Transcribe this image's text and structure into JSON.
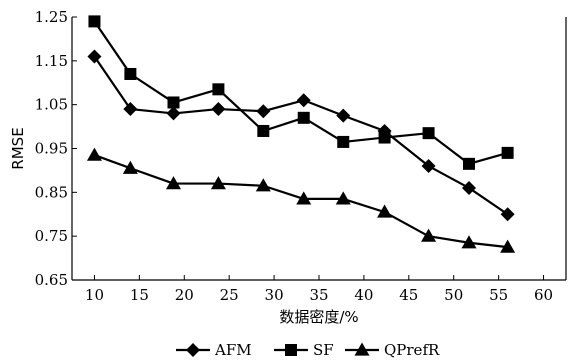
{
  "chart_data": {
    "type": "line",
    "title": "",
    "xlabel": "数据密度/%",
    "ylabel": "RMSE",
    "x_ticks": [
      "10",
      "15",
      "20",
      "25",
      "30",
      "35",
      "40",
      "45",
      "50",
      "55",
      "60"
    ],
    "y_ticks": [
      "0.65",
      "0.75",
      "0.85",
      "0.95",
      "1.05",
      "1.15",
      "1.25"
    ],
    "xlim": [
      7.5,
      62.5
    ],
    "ylim": [
      0.65,
      1.25
    ],
    "grid": false,
    "legend_position": "bottom",
    "series": [
      {
        "name": "AFM",
        "marker": "diamond",
        "x": [
          10,
          14,
          18.8,
          23.8,
          28.8,
          33.3,
          37.7,
          42.3,
          47.2,
          51.7,
          56
        ],
        "values": [
          1.16,
          1.04,
          1.03,
          1.04,
          1.035,
          1.06,
          1.025,
          0.99,
          0.91,
          0.86,
          0.8
        ]
      },
      {
        "name": "SF",
        "marker": "square",
        "x": [
          10,
          14,
          18.8,
          23.8,
          28.8,
          33.3,
          37.7,
          42.3,
          47.2,
          51.7,
          56
        ],
        "values": [
          1.24,
          1.12,
          1.055,
          1.085,
          0.99,
          1.02,
          0.965,
          0.975,
          0.985,
          0.915,
          0.94
        ]
      },
      {
        "name": "QPrefR",
        "marker": "triangle",
        "x": [
          10,
          14,
          18.8,
          23.8,
          28.8,
          33.3,
          37.7,
          42.3,
          47.2,
          51.7,
          56
        ],
        "values": [
          0.935,
          0.905,
          0.87,
          0.87,
          0.865,
          0.835,
          0.835,
          0.805,
          0.75,
          0.735,
          0.725
        ]
      }
    ]
  }
}
